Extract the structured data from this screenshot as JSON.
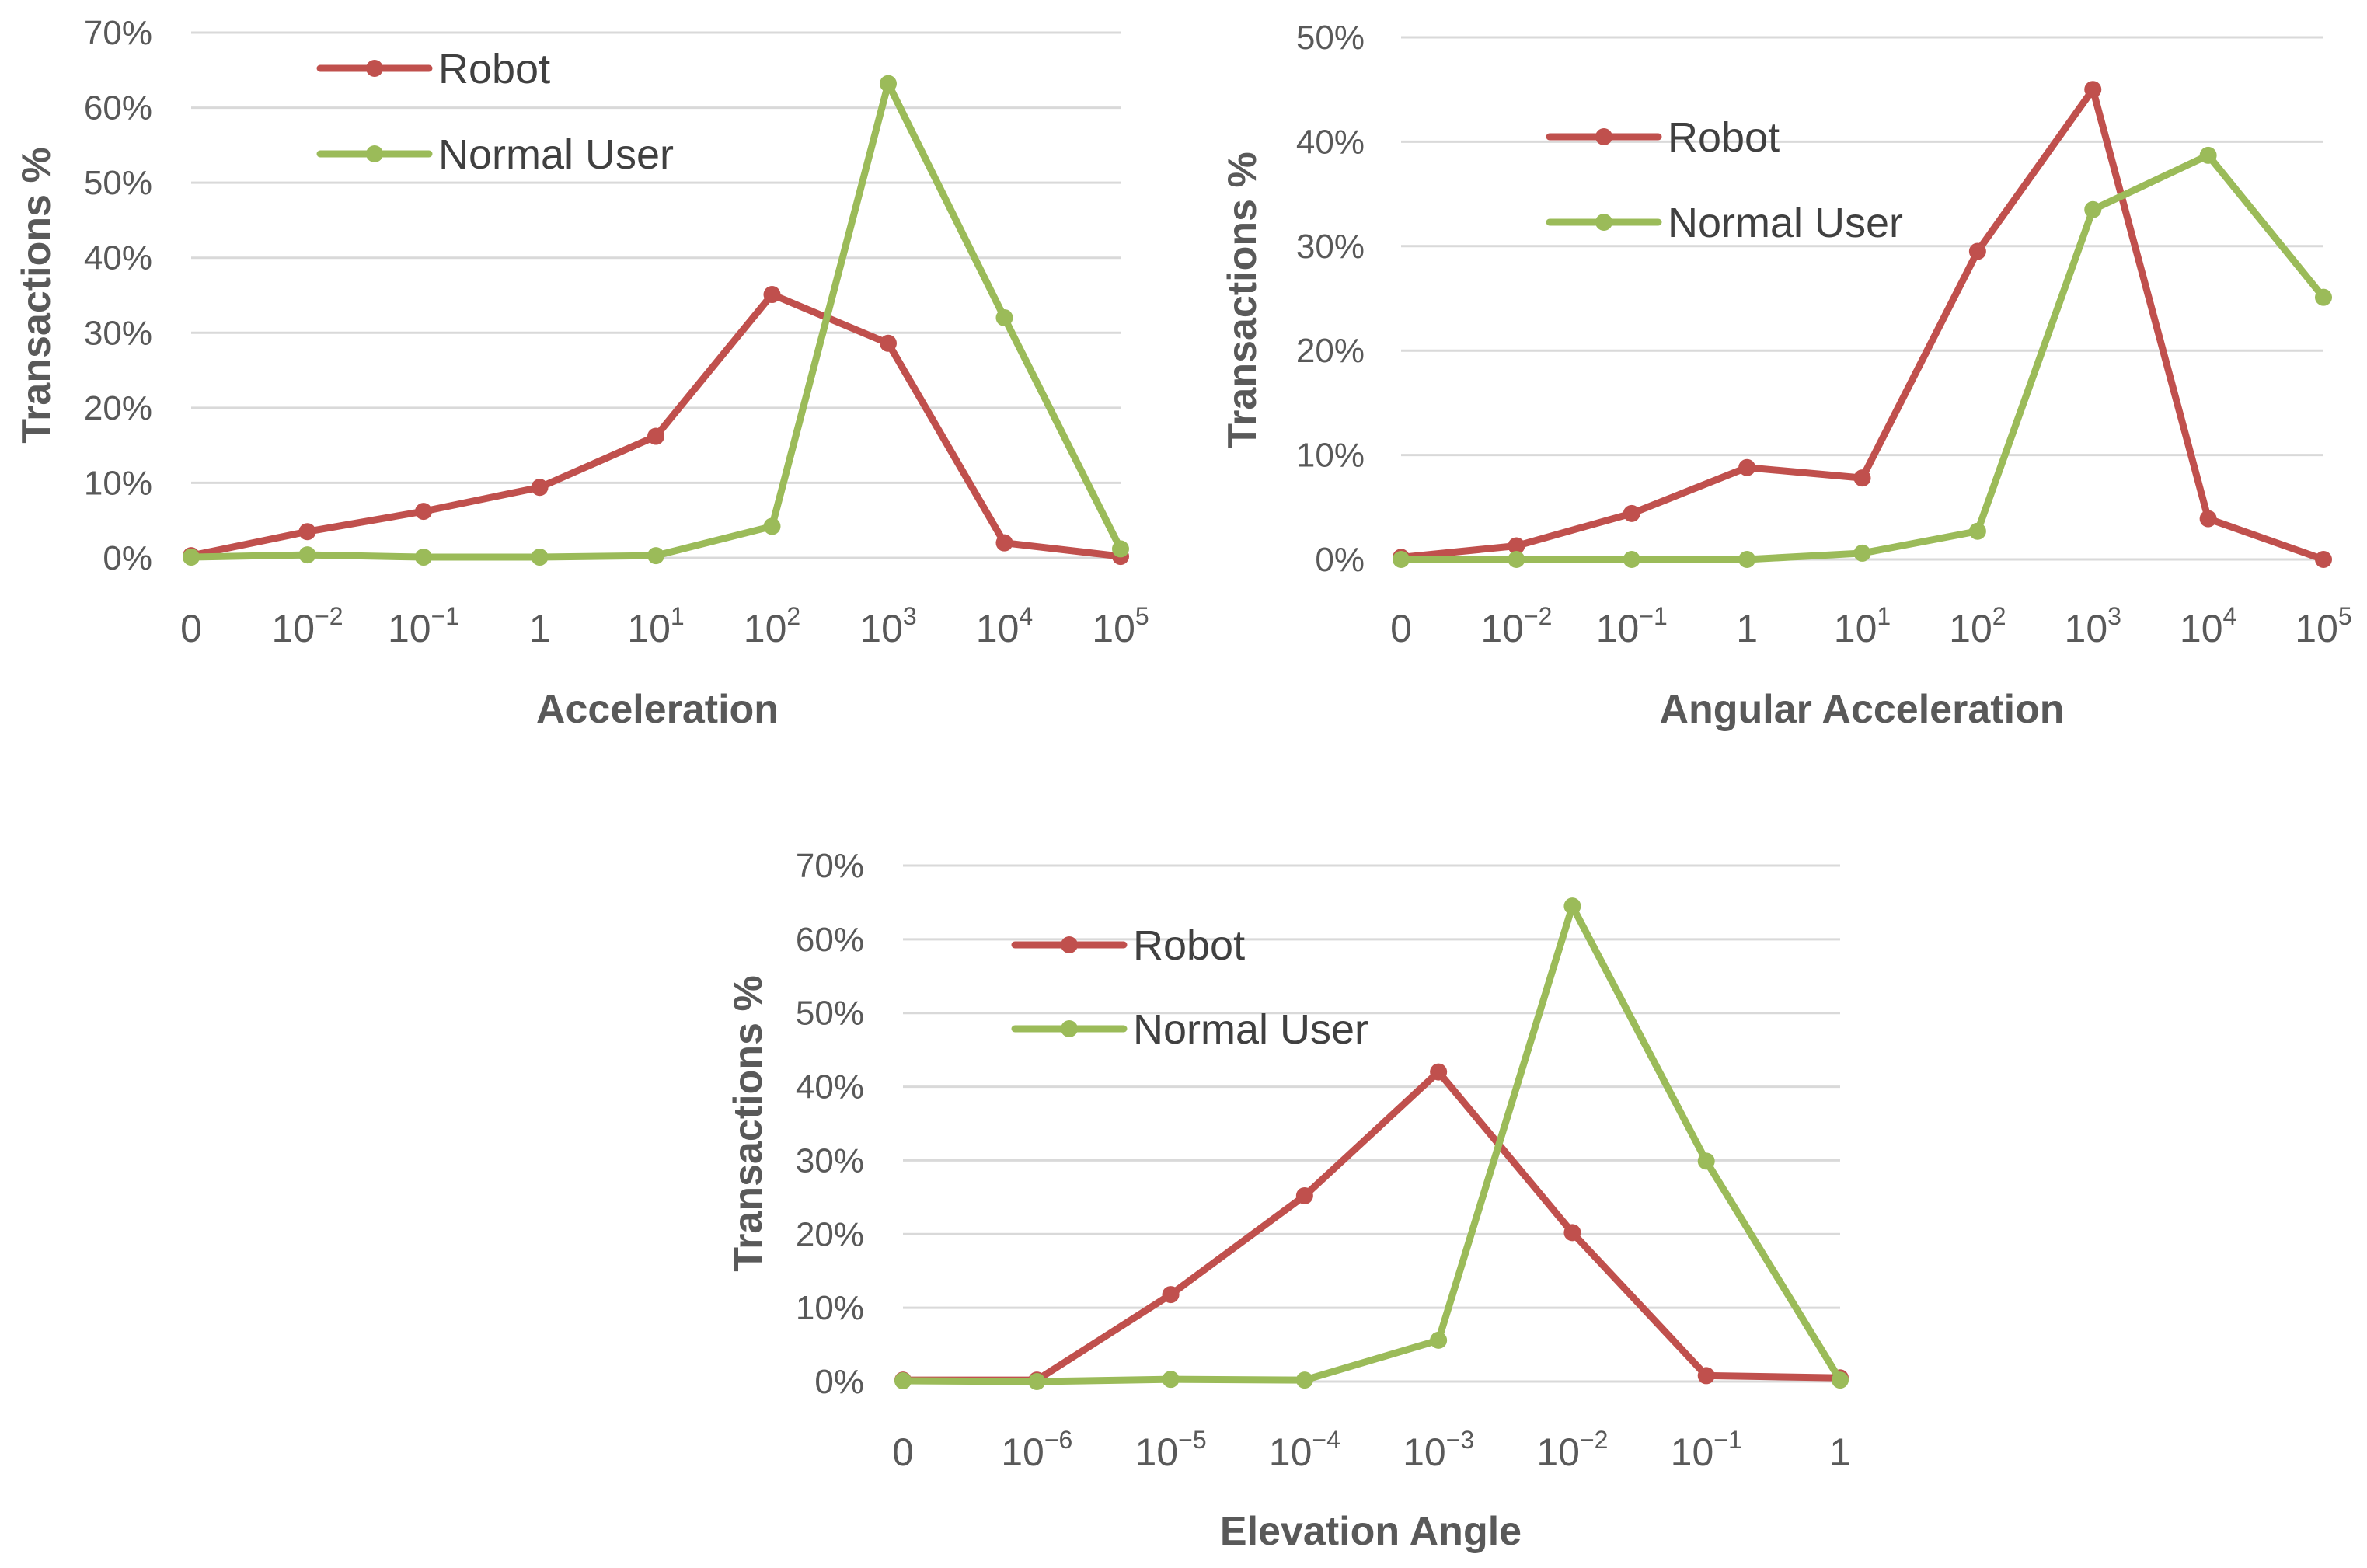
{
  "chart_data": [
    {
      "type": "line",
      "title": "",
      "xlabel": "Acceleration",
      "ylabel": "Transactions %",
      "ylim": [
        0,
        70
      ],
      "yticks": [
        "0%",
        "10%",
        "20%",
        "30%",
        "40%",
        "50%",
        "60%",
        "70%"
      ],
      "categories": [
        {
          "base": "0",
          "exp": ""
        },
        {
          "base": "10",
          "exp": "−2"
        },
        {
          "base": "10",
          "exp": "−1"
        },
        {
          "base": "1",
          "exp": ""
        },
        {
          "base": "10",
          "exp": "1"
        },
        {
          "base": "10",
          "exp": "2"
        },
        {
          "base": "10",
          "exp": "3"
        },
        {
          "base": "10",
          "exp": "4"
        },
        {
          "base": "10",
          "exp": "5"
        }
      ],
      "legend_position": "top-left",
      "series": [
        {
          "name": "Robot",
          "color": "#c0504d",
          "values": [
            0.3,
            3.5,
            6.2,
            9.4,
            16.2,
            35.1,
            28.6,
            2.0,
            0.2
          ]
        },
        {
          "name": "Normal User",
          "color": "#9bbb59",
          "values": [
            0.1,
            0.4,
            0.1,
            0.1,
            0.3,
            4.2,
            63.2,
            32.0,
            1.2
          ]
        }
      ]
    },
    {
      "type": "line",
      "title": "",
      "xlabel": "Angular Acceleration",
      "ylabel": "Transactions %",
      "ylim": [
        0,
        50
      ],
      "yticks": [
        "0%",
        "10%",
        "20%",
        "30%",
        "40%",
        "50%"
      ],
      "categories": [
        {
          "base": "0",
          "exp": ""
        },
        {
          "base": "10",
          "exp": "−2"
        },
        {
          "base": "10",
          "exp": "−1"
        },
        {
          "base": "1",
          "exp": ""
        },
        {
          "base": "10",
          "exp": "1"
        },
        {
          "base": "10",
          "exp": "2"
        },
        {
          "base": "10",
          "exp": "3"
        },
        {
          "base": "10",
          "exp": "4"
        },
        {
          "base": "10",
          "exp": "5"
        }
      ],
      "legend_position": "top-center",
      "series": [
        {
          "name": "Robot",
          "color": "#c0504d",
          "values": [
            0.2,
            1.3,
            4.4,
            8.8,
            7.8,
            29.5,
            45.0,
            3.9,
            0.0
          ]
        },
        {
          "name": "Normal User",
          "color": "#9bbb59",
          "values": [
            0.0,
            0.0,
            0.0,
            0.0,
            0.6,
            2.7,
            33.5,
            38.7,
            25.1
          ]
        }
      ]
    },
    {
      "type": "line",
      "title": "",
      "xlabel": "Elevation Angle",
      "ylabel": "Transactions %",
      "ylim": [
        0,
        70
      ],
      "yticks": [
        "0%",
        "10%",
        "20%",
        "30%",
        "40%",
        "50%",
        "60%",
        "70%"
      ],
      "categories": [
        {
          "base": "0",
          "exp": ""
        },
        {
          "base": "10",
          "exp": "−6"
        },
        {
          "base": "10",
          "exp": "−5"
        },
        {
          "base": "10",
          "exp": "−4"
        },
        {
          "base": "10",
          "exp": "−3"
        },
        {
          "base": "10",
          "exp": "−2"
        },
        {
          "base": "10",
          "exp": "−1"
        },
        {
          "base": "1",
          "exp": ""
        }
      ],
      "legend_position": "top-left",
      "series": [
        {
          "name": "Robot",
          "color": "#c0504d",
          "values": [
            0.2,
            0.2,
            11.8,
            25.2,
            42.0,
            20.2,
            0.8,
            0.5
          ]
        },
        {
          "name": "Normal User",
          "color": "#9bbb59",
          "values": [
            0.1,
            0.0,
            0.3,
            0.2,
            5.6,
            64.5,
            29.9,
            0.2
          ]
        }
      ]
    }
  ]
}
